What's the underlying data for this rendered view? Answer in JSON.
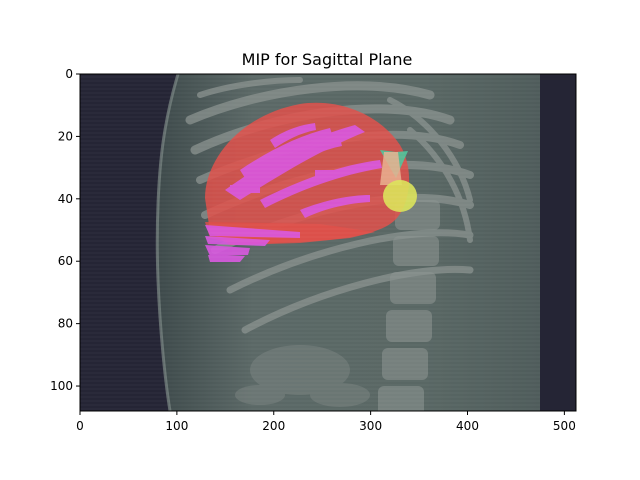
{
  "title": "MIP for Sagittal Plane",
  "axes": {
    "x_ticks": [
      "0",
      "100",
      "200",
      "300",
      "400",
      "500"
    ],
    "y_ticks": [
      "0",
      "20",
      "40",
      "60",
      "80",
      "100"
    ],
    "x_range": [
      0,
      512
    ],
    "y_range": [
      0,
      108
    ],
    "y_inverted": true
  },
  "colors": {
    "background_dark": "#252535",
    "body_tissue": "#5b6866",
    "bone": "#8a928f",
    "liver_overlay": "#e0504a",
    "vessel_overlay": "#d957e0",
    "lesion_green": "#4fc49b",
    "lesion_yellow": "#dbe35a",
    "lesion_peach": "#e9b08f"
  }
}
